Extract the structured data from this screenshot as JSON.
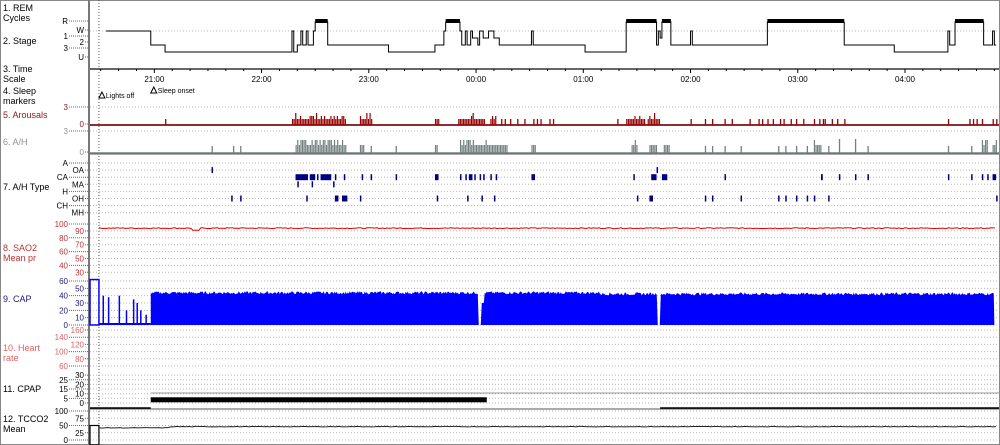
{
  "rows": [
    {
      "label": "1. REM Cycles",
      "color": "#000000"
    },
    {
      "label": "2. Stage",
      "color": "#000000"
    },
    {
      "label": "3. Time Scale",
      "color": "#000000"
    },
    {
      "label": "4. Sleep markers",
      "color": "#000000"
    },
    {
      "label": "5. Arousals",
      "color": "#8b1a1a"
    },
    {
      "label": "6. A/H",
      "color": "#909090"
    },
    {
      "label": "7. A/H Type",
      "color": "#000000"
    },
    {
      "label": "8. SAO2 Mean pr",
      "color": "#c03030"
    },
    {
      "label": "9. CAP",
      "color": "#1a1a80"
    },
    {
      "label": "10. Heart rate",
      "color": "#e06060"
    },
    {
      "label": "11. CPAP",
      "color": "#000000"
    },
    {
      "label": "12. TCCO2 Mean",
      "color": "#000000"
    }
  ],
  "time_axis": [
    "21:00",
    "22:00",
    "23:00",
    "00:00",
    "01:00",
    "02:00",
    "03:00",
    "04:00"
  ],
  "markers": [
    {
      "label": "Lights off",
      "time": "20:29"
    },
    {
      "label": "Sleep onset",
      "time": "20:58"
    }
  ],
  "stage": {
    "levels": [
      "R",
      "W",
      "1",
      "2",
      "3",
      "U"
    ],
    "end": "04:51",
    "hypnogram": [
      [
        "20:33",
        "W"
      ],
      [
        "20:58",
        "2"
      ],
      [
        "21:06",
        "3"
      ],
      [
        "22:17",
        "W"
      ],
      [
        "22:18",
        "3"
      ],
      [
        "22:20",
        "2"
      ],
      [
        "22:22",
        "W"
      ],
      [
        "22:23",
        "2"
      ],
      [
        "22:25",
        "W"
      ],
      [
        "22:26",
        "2"
      ],
      [
        "22:29",
        "W"
      ],
      [
        "22:30",
        "R"
      ],
      [
        "22:37",
        "2"
      ],
      [
        "23:11",
        "3"
      ],
      [
        "23:37",
        "2"
      ],
      [
        "23:42",
        "W"
      ],
      [
        "23:43",
        "R"
      ],
      [
        "23:51",
        "W"
      ],
      [
        "23:52",
        "2"
      ],
      [
        "23:54",
        "W"
      ],
      [
        "23:55",
        "2"
      ],
      [
        "23:57",
        "W"
      ],
      [
        "23:58",
        "1"
      ],
      [
        "00:01",
        "2"
      ],
      [
        "00:02",
        "W"
      ],
      [
        "00:04",
        "1"
      ],
      [
        "00:07",
        "W"
      ],
      [
        "00:10",
        "1"
      ],
      [
        "00:13",
        "2"
      ],
      [
        "00:31",
        "W"
      ],
      [
        "00:32",
        "2"
      ],
      [
        "01:01",
        "3"
      ],
      [
        "01:24",
        "R"
      ],
      [
        "01:41",
        "2"
      ],
      [
        "01:42",
        "W"
      ],
      [
        "01:43",
        "1"
      ],
      [
        "01:44",
        "R"
      ],
      [
        "01:49",
        "2"
      ],
      [
        "02:00",
        "W"
      ],
      [
        "02:01",
        "2"
      ],
      [
        "02:43",
        "R"
      ],
      [
        "03:26",
        "2"
      ],
      [
        "03:54",
        "3"
      ],
      [
        "04:24",
        "W"
      ],
      [
        "04:25",
        "2"
      ],
      [
        "04:28",
        "R"
      ],
      [
        "04:44",
        "2"
      ],
      [
        "04:49",
        "W"
      ],
      [
        "04:50",
        "2"
      ]
    ]
  },
  "arousals": {
    "scale": [
      "3",
      "0"
    ],
    "color": "#990000",
    "events": [
      "21:06",
      "22:17-22:47",
      "22:55-23:02",
      "23:37-23:39",
      "23:50-00:05",
      "00:08-00:11",
      "00:14",
      "00:16",
      "00:19",
      "00:23",
      "00:27",
      "00:32",
      "00:34",
      "00:36",
      "00:41",
      "00:43",
      "01:19",
      "01:24",
      "01:25-01:34",
      "01:36-01:43",
      "02:00",
      "02:08",
      "02:12",
      "02:19",
      "02:23",
      "02:33",
      "02:38",
      "02:40",
      "02:43",
      "02:46",
      "02:50",
      "02:52",
      "02:56",
      "02:59",
      "03:03",
      "03:09",
      "03:12",
      "03:14",
      "03:15",
      "03:19",
      "03:22",
      "03:26",
      "04:24",
      "04:36",
      "04:38",
      "04:40",
      "04:43",
      "04:49",
      "04:51"
    ]
  },
  "ah": {
    "scale": [
      "3",
      "0"
    ],
    "color": "#738080",
    "events": [
      "21:32",
      "21:44",
      "21:48",
      "22:19-22:47",
      "22:55-22:57",
      "23:01",
      "23:15",
      "23:37-23:38",
      "23:51-00:17",
      "00:31-00:33",
      "01:27-01:30",
      "01:37-01:41",
      "01:45-01:48",
      "02:08",
      "02:12",
      "02:19",
      "02:28",
      "02:49",
      "02:53",
      "02:59",
      "03:05",
      "03:09-03:13",
      "03:17",
      "03:23",
      "03:32",
      "03:39",
      "04:24",
      "04:37",
      "04:43-04:46",
      "04:49-04:51"
    ],
    "tall": [
      "03:23",
      "03:32"
    ]
  },
  "ah_type": {
    "color": "#000080",
    "types": [
      {
        "label": "A",
        "events": []
      },
      {
        "label": "OA",
        "events": [
          "21:32",
          "01:41"
        ]
      },
      {
        "label": "CA",
        "events": [
          "22:19-22:26",
          "22:27-22:30",
          "22:31",
          "22:33-22:39",
          "22:41",
          "22:46",
          "22:56",
          "23:01",
          "23:15",
          "23:37-23:39",
          "23:51",
          "23:54",
          "23:56-23:58",
          "23:59",
          "00:02",
          "00:04",
          "00:08",
          "00:11",
          "00:31-00:33",
          "01:28",
          "01:38-01:41",
          "01:44-01:47",
          "02:19",
          "03:13-03:14",
          "03:23",
          "03:32",
          "03:39",
          "04:24",
          "04:37",
          "04:43",
          "04:46",
          "04:49-04:51"
        ]
      },
      {
        "label": "MA",
        "events": [
          "22:20",
          "22:28",
          "22:40"
        ]
      },
      {
        "label": "H",
        "events": []
      },
      {
        "label": "OH",
        "events": [
          "21:43",
          "21:48",
          "22:25",
          "22:41-22:43",
          "22:45-22:48",
          "22:55",
          "23:38",
          "23:55",
          "00:03",
          "00:10",
          "01:30",
          "01:37-01:39",
          "02:08",
          "02:12",
          "02:28",
          "02:49",
          "02:53",
          "02:59",
          "03:05",
          "03:09",
          "03:17",
          "04:51"
        ]
      },
      {
        "label": "CH",
        "events": []
      },
      {
        "label": "MH",
        "events": []
      }
    ]
  },
  "sao2": {
    "scale": [
      "100",
      "90",
      "80",
      "70",
      "60",
      "50",
      "40",
      "30"
    ],
    "color": "#e00000",
    "start": "20:29",
    "end": "04:51",
    "level": 94,
    "dips": [
      [
        "21:23",
        91
      ]
    ]
  },
  "cap": {
    "scale": [
      "60",
      "50",
      "40",
      "30",
      "20",
      "10",
      "0"
    ],
    "color": "#0000ff",
    "box": [
      "20:24",
      "20:29",
      62
    ],
    "spikes": [
      [
        "20:31",
        40
      ],
      [
        "20:34",
        38
      ],
      [
        "20:40",
        40
      ],
      [
        "20:44",
        20
      ],
      [
        "20:48",
        35
      ],
      [
        "20:50",
        30
      ],
      [
        "20:52",
        20
      ],
      [
        "20:55",
        14
      ]
    ],
    "fill": {
      "start": "20:58",
      "end": "04:50",
      "level": 44
    },
    "dips": [
      [
        "00:02",
        0
      ],
      [
        "00:04",
        30
      ],
      [
        "01:42",
        0
      ]
    ]
  },
  "heart_rate": {
    "scale": [
      "160",
      "140",
      "120",
      "100",
      "80",
      "60"
    ],
    "color": "#e06060"
  },
  "cpap": {
    "scale": [
      "30",
      "25",
      "20",
      "15",
      "10",
      "5",
      "0"
    ],
    "bar": {
      "start": "20:58",
      "end": "00:06",
      "level": 4
    },
    "line_start": "01:43"
  },
  "tcco2": {
    "scale": [
      "100",
      "75",
      "50",
      "25",
      "0"
    ],
    "box": [
      "20:24",
      "20:29",
      50
    ],
    "start": "20:29",
    "end": "04:51",
    "level": 42
  }
}
